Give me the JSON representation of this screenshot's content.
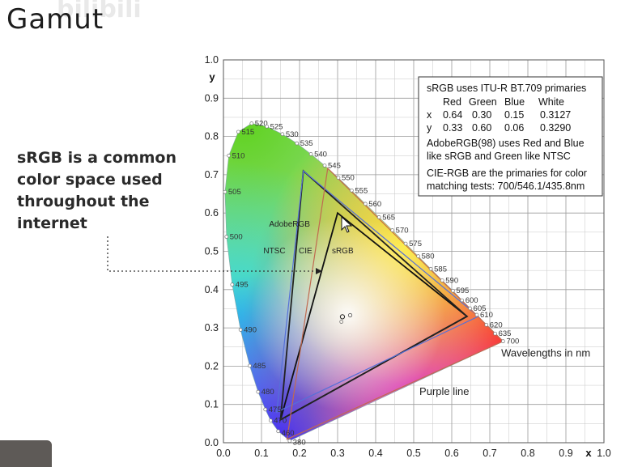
{
  "slide": {
    "title": "Gamut",
    "watermark": "bilibili",
    "side_note": "sRGB is a common color space used throughout the internet"
  },
  "chart_data": {
    "type": "diagram",
    "title": "",
    "xlabel": "x",
    "ylabel": "y",
    "xlim": [
      0,
      1.0
    ],
    "ylim": [
      0,
      1.0
    ],
    "x_ticks": [
      "0.0",
      "0.1",
      "0.2",
      "0.3",
      "0.4",
      "0.5",
      "0.6",
      "0.7",
      "0.8",
      "0.9",
      "1.0"
    ],
    "y_ticks": [
      "0.0",
      "0.1",
      "0.2",
      "0.3",
      "0.4",
      "0.5",
      "0.6",
      "0.7",
      "0.8",
      "0.9",
      "1.0"
    ],
    "grid": true,
    "spectral_locus": [
      {
        "nm": "380",
        "x": 0.174,
        "y": 0.005
      },
      {
        "nm": "460",
        "x": 0.144,
        "y": 0.03
      },
      {
        "nm": "470",
        "x": 0.124,
        "y": 0.058
      },
      {
        "nm": "475",
        "x": 0.11,
        "y": 0.087
      },
      {
        "nm": "480",
        "x": 0.091,
        "y": 0.133
      },
      {
        "nm": "485",
        "x": 0.069,
        "y": 0.201
      },
      {
        "nm": "490",
        "x": 0.045,
        "y": 0.295
      },
      {
        "nm": "495",
        "x": 0.023,
        "y": 0.413
      },
      {
        "nm": "500",
        "x": 0.008,
        "y": 0.538
      },
      {
        "nm": "505",
        "x": 0.004,
        "y": 0.655
      },
      {
        "nm": "510",
        "x": 0.014,
        "y": 0.75
      },
      {
        "nm": "515",
        "x": 0.039,
        "y": 0.812
      },
      {
        "nm": "520",
        "x": 0.074,
        "y": 0.834
      },
      {
        "nm": "525",
        "x": 0.114,
        "y": 0.826
      },
      {
        "nm": "530",
        "x": 0.155,
        "y": 0.806
      },
      {
        "nm": "535",
        "x": 0.193,
        "y": 0.782
      },
      {
        "nm": "540",
        "x": 0.23,
        "y": 0.754
      },
      {
        "nm": "545",
        "x": 0.266,
        "y": 0.724
      },
      {
        "nm": "550",
        "x": 0.302,
        "y": 0.692
      },
      {
        "nm": "555",
        "x": 0.337,
        "y": 0.659
      },
      {
        "nm": "560",
        "x": 0.373,
        "y": 0.624
      },
      {
        "nm": "565",
        "x": 0.409,
        "y": 0.589
      },
      {
        "nm": "570",
        "x": 0.444,
        "y": 0.555
      },
      {
        "nm": "575",
        "x": 0.479,
        "y": 0.52
      },
      {
        "nm": "580",
        "x": 0.512,
        "y": 0.487
      },
      {
        "nm": "585",
        "x": 0.545,
        "y": 0.454
      },
      {
        "nm": "590",
        "x": 0.575,
        "y": 0.424
      },
      {
        "nm": "595",
        "x": 0.603,
        "y": 0.397
      },
      {
        "nm": "600",
        "x": 0.627,
        "y": 0.372
      },
      {
        "nm": "605",
        "x": 0.648,
        "y": 0.351
      },
      {
        "nm": "610",
        "x": 0.666,
        "y": 0.334
      },
      {
        "nm": "620",
        "x": 0.691,
        "y": 0.308
      },
      {
        "nm": "635",
        "x": 0.714,
        "y": 0.285
      },
      {
        "nm": "700",
        "x": 0.735,
        "y": 0.265
      }
    ],
    "gamuts": [
      {
        "name": "sRGB",
        "color": "#111111",
        "points": [
          [
            0.64,
            0.33
          ],
          [
            0.3,
            0.6
          ],
          [
            0.15,
            0.06
          ]
        ]
      },
      {
        "name": "AdobeRGB",
        "color": "#222222",
        "points": [
          [
            0.64,
            0.33
          ],
          [
            0.21,
            0.71
          ],
          [
            0.15,
            0.06
          ]
        ]
      },
      {
        "name": "NTSC",
        "color": "#5570d8",
        "points": [
          [
            0.67,
            0.33
          ],
          [
            0.21,
            0.71
          ],
          [
            0.14,
            0.08
          ]
        ]
      },
      {
        "name": "CIE",
        "color": "#c06a50",
        "points": [
          [
            0.735,
            0.265
          ],
          [
            0.274,
            0.717
          ],
          [
            0.167,
            0.009
          ]
        ]
      }
    ],
    "region_labels": [
      {
        "text": "AdobeRGB",
        "x": 0.12,
        "y": 0.565,
        "color": "#222222"
      },
      {
        "text": "NTSC",
        "x": 0.105,
        "y": 0.495,
        "color": "#5570d8"
      },
      {
        "text": "CIE",
        "x": 0.198,
        "y": 0.495,
        "color": "#c06a50"
      },
      {
        "text": "sRGB",
        "x": 0.285,
        "y": 0.495,
        "color": "#222222"
      }
    ],
    "annotations": [
      {
        "text": "Wavelengths in nm",
        "x": 0.73,
        "y": 0.225
      },
      {
        "text": "Purple line",
        "x": 0.515,
        "y": 0.125
      }
    ],
    "info_box": {
      "line1": "sRGB uses ITU-R BT.709 primaries",
      "headers": [
        "Red",
        "Green",
        "Blue",
        "White"
      ],
      "row_x": {
        "label": "x",
        "values": [
          "0.64",
          "0.30",
          "0.15",
          "0.3127"
        ]
      },
      "row_y": {
        "label": "y",
        "values": [
          "0.33",
          "0.60",
          "0.06",
          "0.3290"
        ]
      },
      "adobe_1": "AdobeRGB(98) uses Red and Blue",
      "adobe_2": "like sRGB and Green like NTSC",
      "cie_1": "CIE-RGB are the primaries for color",
      "cie_2": "matching tests: 700/546.1/435.8nm"
    },
    "pointer": "dotted arrow from side note to sRGB triangle"
  }
}
